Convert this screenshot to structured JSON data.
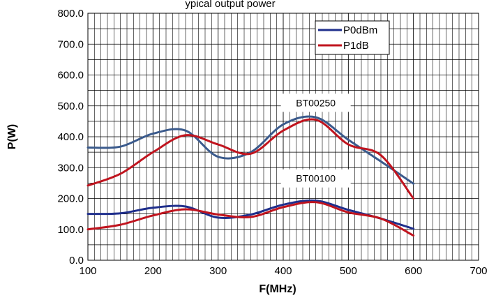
{
  "chart_data": {
    "type": "line",
    "title": "ypical output power",
    "xlabel": "F(MHz)",
    "ylabel": "P(W)",
    "xlim": [
      100,
      700
    ],
    "ylim": [
      0,
      800
    ],
    "x_ticks": [
      100,
      200,
      300,
      400,
      500,
      600,
      700
    ],
    "y_ticks": [
      0,
      100,
      200,
      300,
      400,
      500,
      600,
      700,
      800
    ],
    "x_tick_labels": [
      "100",
      "200",
      "300",
      "400",
      "500",
      "600",
      "700"
    ],
    "y_tick_labels": [
      "0.0",
      "100.0",
      "200.0",
      "300.0",
      "400.0",
      "500.0",
      "600.0",
      "700.0",
      "800.0"
    ],
    "grid": true,
    "legend_position": "top-right",
    "legend": [
      {
        "name": "P0dBm",
        "color": "#1f2f8c"
      },
      {
        "name": "P1dB",
        "color": "#c0141e"
      }
    ],
    "annotations": [
      {
        "text": "BT00250",
        "x": 450,
        "y": 510
      },
      {
        "text": "BT00100",
        "x": 450,
        "y": 265
      }
    ],
    "series": [
      {
        "name": "P0dBm",
        "group": "BT00250",
        "color": "#3a5a8c",
        "x": [
          100,
          150,
          200,
          250,
          300,
          350,
          400,
          450,
          500,
          550,
          600
        ],
        "y": [
          365,
          368,
          410,
          420,
          335,
          350,
          440,
          463,
          390,
          320,
          248
        ]
      },
      {
        "name": "P1dB",
        "group": "BT00250",
        "color": "#c0141e",
        "x": [
          100,
          150,
          200,
          250,
          300,
          350,
          400,
          450,
          500,
          550,
          600
        ],
        "y": [
          242,
          280,
          350,
          405,
          375,
          345,
          420,
          455,
          375,
          340,
          200
        ]
      },
      {
        "name": "P0dBm",
        "group": "BT00100",
        "color": "#1f2f8c",
        "x": [
          100,
          150,
          200,
          250,
          300,
          350,
          400,
          450,
          500,
          550,
          600
        ],
        "y": [
          150,
          152,
          170,
          174,
          138,
          148,
          180,
          193,
          163,
          135,
          102
        ]
      },
      {
        "name": "P1dB",
        "group": "BT00100",
        "color": "#c0141e",
        "x": [
          100,
          150,
          200,
          250,
          300,
          350,
          400,
          450,
          500,
          550,
          600
        ],
        "y": [
          100,
          115,
          145,
          165,
          148,
          140,
          172,
          188,
          155,
          135,
          80
        ]
      }
    ]
  }
}
